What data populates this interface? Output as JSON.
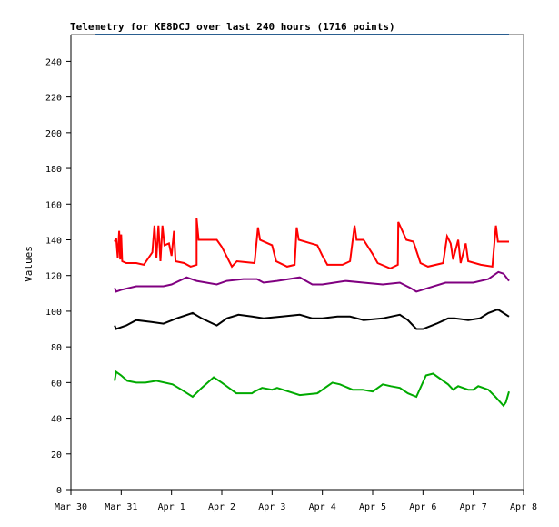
{
  "chart_data": {
    "type": "line",
    "title": "Telemetry for KE8DCJ over last 240 hours (1716 points)",
    "xlabel": "",
    "ylabel": "Values",
    "ylim": [
      0,
      255
    ],
    "xlim_days": [
      0,
      9
    ],
    "yticks": [
      0,
      20,
      40,
      60,
      80,
      100,
      120,
      140,
      160,
      180,
      200,
      220,
      240
    ],
    "xticks": [
      "Mar 30",
      "Mar 31",
      "Apr 1",
      "Apr 2",
      "Apr 3",
      "Apr 4",
      "Apr 5",
      "Apr 6",
      "Apr 7",
      "Apr 8"
    ],
    "grid": false,
    "series": [
      {
        "name": "blue",
        "color": "#0066cc",
        "points": [
          [
            0.49,
            256
          ],
          [
            8.71,
            256
          ]
        ]
      },
      {
        "name": "red",
        "color": "#ff0000",
        "points": [
          [
            0.87,
            139
          ],
          [
            0.9,
            141
          ],
          [
            0.93,
            130
          ],
          [
            0.96,
            145
          ],
          [
            0.98,
            129
          ],
          [
            1.0,
            143
          ],
          [
            1.02,
            128
          ],
          [
            1.1,
            127
          ],
          [
            1.3,
            127
          ],
          [
            1.45,
            126
          ],
          [
            1.62,
            133
          ],
          [
            1.66,
            148
          ],
          [
            1.7,
            130
          ],
          [
            1.74,
            148
          ],
          [
            1.78,
            128
          ],
          [
            1.82,
            148
          ],
          [
            1.86,
            137
          ],
          [
            1.95,
            138
          ],
          [
            2.0,
            131
          ],
          [
            2.05,
            145
          ],
          [
            2.08,
            128
          ],
          [
            2.25,
            127
          ],
          [
            2.38,
            125
          ],
          [
            2.5,
            126
          ],
          [
            2.5,
            152
          ],
          [
            2.54,
            140
          ],
          [
            2.9,
            140
          ],
          [
            3.0,
            136
          ],
          [
            3.2,
            125
          ],
          [
            3.3,
            128
          ],
          [
            3.65,
            127
          ],
          [
            3.72,
            147
          ],
          [
            3.76,
            140
          ],
          [
            4.0,
            137
          ],
          [
            4.08,
            128
          ],
          [
            4.3,
            125
          ],
          [
            4.45,
            126
          ],
          [
            4.49,
            147
          ],
          [
            4.53,
            140
          ],
          [
            4.9,
            137
          ],
          [
            5.0,
            131
          ],
          [
            5.1,
            126
          ],
          [
            5.4,
            126
          ],
          [
            5.55,
            128
          ],
          [
            5.64,
            148
          ],
          [
            5.68,
            140
          ],
          [
            5.82,
            140
          ],
          [
            6.0,
            132
          ],
          [
            6.1,
            127
          ],
          [
            6.35,
            124
          ],
          [
            6.5,
            126
          ],
          [
            6.51,
            150
          ],
          [
            6.67,
            140
          ],
          [
            6.81,
            139
          ],
          [
            6.95,
            127
          ],
          [
            7.1,
            125
          ],
          [
            7.4,
            127
          ],
          [
            7.48,
            142
          ],
          [
            7.55,
            138
          ],
          [
            7.6,
            129
          ],
          [
            7.7,
            140
          ],
          [
            7.75,
            127
          ],
          [
            7.85,
            138
          ],
          [
            7.9,
            128
          ],
          [
            8.15,
            126
          ],
          [
            8.38,
            125
          ],
          [
            8.45,
            148
          ],
          [
            8.49,
            139
          ],
          [
            8.71,
            139
          ]
        ]
      },
      {
        "name": "purple",
        "color": "#800080",
        "points": [
          [
            0.87,
            113
          ],
          [
            0.9,
            111
          ],
          [
            1.0,
            112
          ],
          [
            1.3,
            114
          ],
          [
            1.6,
            114
          ],
          [
            1.84,
            114
          ],
          [
            2.0,
            115
          ],
          [
            2.3,
            119
          ],
          [
            2.5,
            117
          ],
          [
            2.9,
            115
          ],
          [
            3.1,
            117
          ],
          [
            3.43,
            118
          ],
          [
            3.7,
            118
          ],
          [
            3.83,
            116
          ],
          [
            4.1,
            117
          ],
          [
            4.55,
            119
          ],
          [
            4.8,
            115
          ],
          [
            5.0,
            115
          ],
          [
            5.46,
            117
          ],
          [
            5.82,
            116
          ],
          [
            6.2,
            115
          ],
          [
            6.54,
            116
          ],
          [
            6.75,
            113
          ],
          [
            6.87,
            111
          ],
          [
            7.1,
            113
          ],
          [
            7.45,
            116
          ],
          [
            7.7,
            116
          ],
          [
            8.0,
            116
          ],
          [
            8.3,
            118
          ],
          [
            8.5,
            122
          ],
          [
            8.6,
            121
          ],
          [
            8.71,
            117
          ]
        ]
      },
      {
        "name": "black",
        "color": "#000000",
        "points": [
          [
            0.87,
            92
          ],
          [
            0.9,
            90
          ],
          [
            1.1,
            92
          ],
          [
            1.3,
            95
          ],
          [
            1.6,
            94
          ],
          [
            1.84,
            93
          ],
          [
            2.1,
            96
          ],
          [
            2.42,
            99
          ],
          [
            2.6,
            96
          ],
          [
            2.9,
            92
          ],
          [
            3.1,
            96
          ],
          [
            3.33,
            98
          ],
          [
            3.6,
            97
          ],
          [
            3.83,
            96
          ],
          [
            4.2,
            97
          ],
          [
            4.55,
            98
          ],
          [
            4.8,
            96
          ],
          [
            5.0,
            96
          ],
          [
            5.3,
            97
          ],
          [
            5.55,
            97
          ],
          [
            5.82,
            95
          ],
          [
            6.2,
            96
          ],
          [
            6.54,
            98
          ],
          [
            6.7,
            95
          ],
          [
            6.87,
            90
          ],
          [
            7.0,
            90
          ],
          [
            7.27,
            93
          ],
          [
            7.5,
            96
          ],
          [
            7.63,
            96
          ],
          [
            7.9,
            95
          ],
          [
            8.13,
            96
          ],
          [
            8.3,
            99
          ],
          [
            8.49,
            101
          ],
          [
            8.6,
            99
          ],
          [
            8.71,
            97
          ]
        ]
      },
      {
        "name": "green",
        "color": "#00aa00",
        "points": [
          [
            0.87,
            61
          ],
          [
            0.9,
            66
          ],
          [
            1.0,
            64
          ],
          [
            1.12,
            61
          ],
          [
            1.3,
            60
          ],
          [
            1.48,
            60
          ],
          [
            1.7,
            61
          ],
          [
            2.02,
            59
          ],
          [
            2.2,
            56
          ],
          [
            2.42,
            52
          ],
          [
            2.6,
            57
          ],
          [
            2.84,
            63
          ],
          [
            3.0,
            60
          ],
          [
            3.29,
            54
          ],
          [
            3.6,
            54
          ],
          [
            3.65,
            55
          ],
          [
            3.8,
            57
          ],
          [
            4.0,
            56
          ],
          [
            4.1,
            57
          ],
          [
            4.55,
            53
          ],
          [
            4.9,
            54
          ],
          [
            5.2,
            60
          ],
          [
            5.35,
            59
          ],
          [
            5.6,
            56
          ],
          [
            5.8,
            56
          ],
          [
            6.0,
            55
          ],
          [
            6.2,
            59
          ],
          [
            6.36,
            58
          ],
          [
            6.54,
            57
          ],
          [
            6.7,
            54
          ],
          [
            6.87,
            52
          ],
          [
            7.06,
            64
          ],
          [
            7.2,
            65
          ],
          [
            7.5,
            59
          ],
          [
            7.6,
            56
          ],
          [
            7.7,
            58
          ],
          [
            7.9,
            56
          ],
          [
            8.0,
            56
          ],
          [
            8.1,
            58
          ],
          [
            8.3,
            56
          ],
          [
            8.44,
            52
          ],
          [
            8.6,
            47
          ],
          [
            8.65,
            49
          ],
          [
            8.71,
            55
          ]
        ]
      }
    ]
  }
}
